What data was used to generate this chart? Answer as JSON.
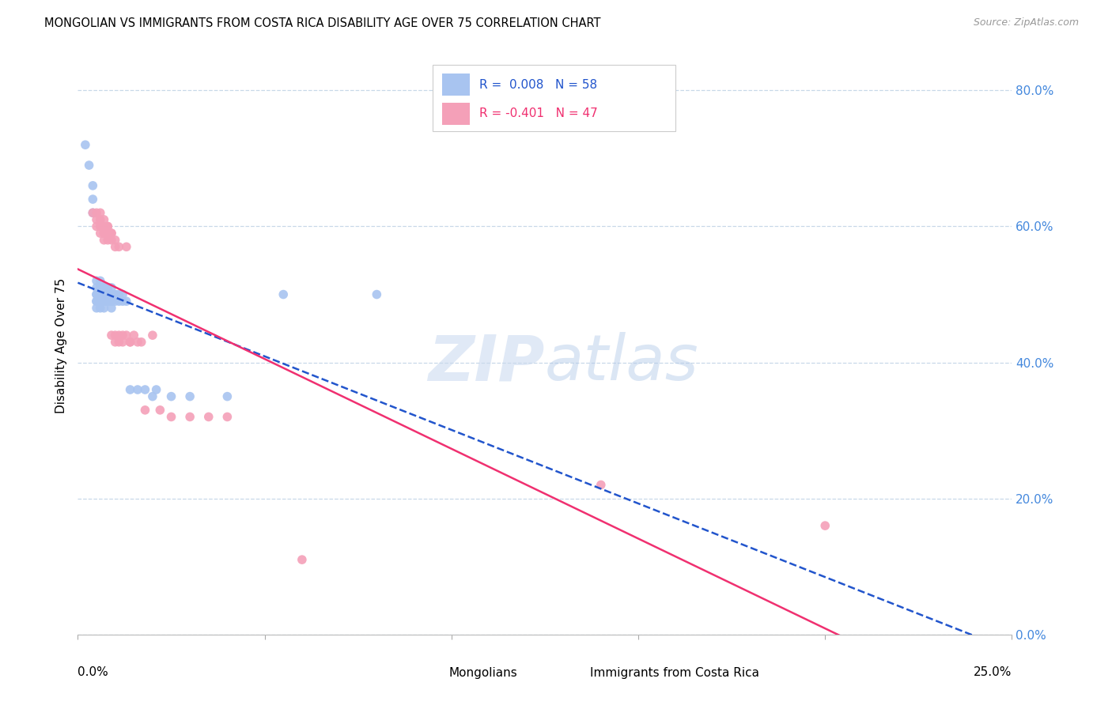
{
  "title": "MONGOLIAN VS IMMIGRANTS FROM COSTA RICA DISABILITY AGE OVER 75 CORRELATION CHART",
  "source": "Source: ZipAtlas.com",
  "ylabel": "Disability Age Over 75",
  "right_yticks": [
    0.0,
    0.2,
    0.4,
    0.6,
    0.8
  ],
  "right_yticklabels": [
    "0.0%",
    "20.0%",
    "40.0%",
    "60.0%",
    "80.0%"
  ],
  "xlim": [
    0.0,
    0.25
  ],
  "ylim": [
    0.0,
    0.85
  ],
  "mongolian_color": "#a8c4f0",
  "costa_rica_color": "#f4a0b8",
  "mongolian_line_color": "#2255cc",
  "costa_rica_line_color": "#f03070",
  "mongolian_R": "0.008",
  "mongolian_N": "58",
  "costa_rica_R": "-0.401",
  "costa_rica_N": "47",
  "right_axis_color": "#4488dd",
  "grid_color": "#c8d8e8",
  "mongolian_x": [
    0.002,
    0.003,
    0.004,
    0.004,
    0.004,
    0.005,
    0.005,
    0.005,
    0.005,
    0.005,
    0.005,
    0.005,
    0.006,
    0.006,
    0.006,
    0.006,
    0.006,
    0.006,
    0.006,
    0.006,
    0.006,
    0.007,
    0.007,
    0.007,
    0.007,
    0.007,
    0.007,
    0.007,
    0.008,
    0.008,
    0.008,
    0.008,
    0.008,
    0.008,
    0.009,
    0.009,
    0.009,
    0.009,
    0.009,
    0.009,
    0.01,
    0.01,
    0.01,
    0.011,
    0.011,
    0.012,
    0.012,
    0.013,
    0.014,
    0.016,
    0.018,
    0.02,
    0.021,
    0.025,
    0.03,
    0.04,
    0.055,
    0.08
  ],
  "mongolian_y": [
    0.72,
    0.69,
    0.66,
    0.64,
    0.62,
    0.52,
    0.51,
    0.5,
    0.5,
    0.49,
    0.49,
    0.48,
    0.52,
    0.51,
    0.51,
    0.5,
    0.5,
    0.49,
    0.49,
    0.49,
    0.48,
    0.51,
    0.51,
    0.5,
    0.5,
    0.49,
    0.49,
    0.48,
    0.51,
    0.51,
    0.5,
    0.5,
    0.49,
    0.49,
    0.51,
    0.5,
    0.5,
    0.49,
    0.49,
    0.48,
    0.5,
    0.5,
    0.49,
    0.5,
    0.49,
    0.5,
    0.49,
    0.49,
    0.36,
    0.36,
    0.36,
    0.35,
    0.36,
    0.35,
    0.35,
    0.35,
    0.5,
    0.5
  ],
  "costa_rica_x": [
    0.004,
    0.005,
    0.005,
    0.005,
    0.006,
    0.006,
    0.006,
    0.006,
    0.007,
    0.007,
    0.007,
    0.007,
    0.007,
    0.008,
    0.008,
    0.008,
    0.008,
    0.009,
    0.009,
    0.009,
    0.009,
    0.01,
    0.01,
    0.01,
    0.01,
    0.011,
    0.011,
    0.011,
    0.012,
    0.012,
    0.013,
    0.013,
    0.014,
    0.014,
    0.015,
    0.016,
    0.017,
    0.018,
    0.02,
    0.022,
    0.025,
    0.03,
    0.035,
    0.04,
    0.06,
    0.14,
    0.2
  ],
  "costa_rica_y": [
    0.62,
    0.62,
    0.61,
    0.6,
    0.62,
    0.61,
    0.6,
    0.59,
    0.61,
    0.6,
    0.59,
    0.59,
    0.58,
    0.6,
    0.6,
    0.59,
    0.58,
    0.59,
    0.59,
    0.58,
    0.44,
    0.58,
    0.57,
    0.44,
    0.43,
    0.57,
    0.44,
    0.43,
    0.44,
    0.43,
    0.57,
    0.44,
    0.43,
    0.43,
    0.44,
    0.43,
    0.43,
    0.33,
    0.44,
    0.33,
    0.32,
    0.32,
    0.32,
    0.32,
    0.11,
    0.22,
    0.16
  ]
}
